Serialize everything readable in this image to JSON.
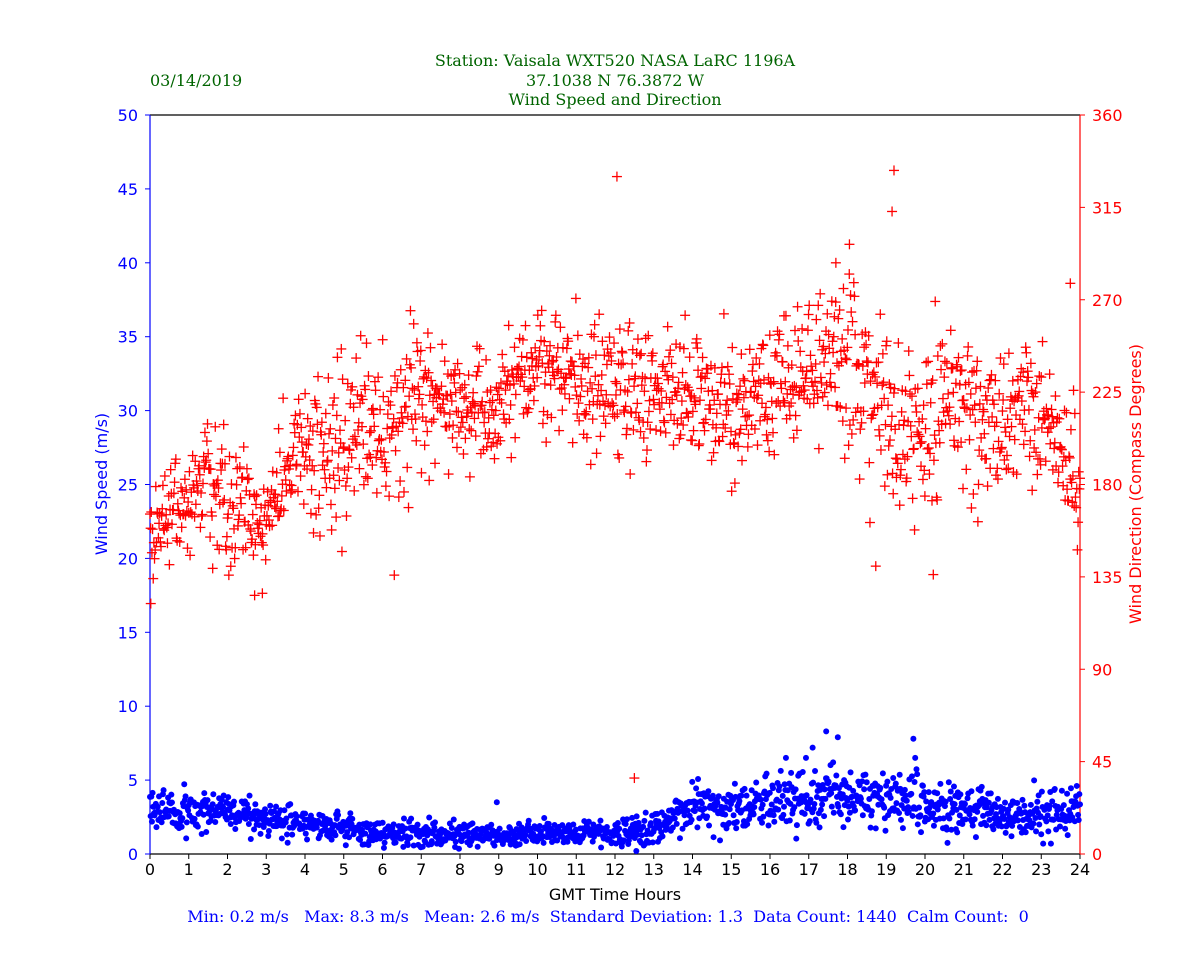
{
  "header": {
    "date": "03/14/2019",
    "station": "Station:  Vaisala WXT520  NASA LaRC 1196A",
    "coords": "37.1038 N 76.3872 W",
    "title": "Wind Speed and Direction"
  },
  "footer": {
    "stats": "Min: 0.2 m/s   Max: 8.3 m/s   Mean: 2.6 m/s  Standard Deviation: 1.3  Data Count: 1440  Calm Count:  0"
  },
  "colors": {
    "speed": "#0000ff",
    "direction": "#ff0000",
    "header": "#006400",
    "axis": "#000000"
  },
  "chart_data": {
    "type": "scatter",
    "title": "Wind Speed and Direction",
    "xlabel": "GMT Time Hours",
    "ylabel_left": "Wind Speed (m/s)",
    "ylabel_right": "Wind Direction (Compass Degrees)",
    "xlim": [
      0,
      24
    ],
    "ylim_left": [
      0,
      50
    ],
    "ylim_right": [
      0,
      360
    ],
    "x_ticks": [
      "0",
      "1",
      "2",
      "3",
      "4",
      "5",
      "6",
      "7",
      "8",
      "9",
      "10",
      "11",
      "12",
      "13",
      "14",
      "15",
      "16",
      "17",
      "18",
      "19",
      "20",
      "21",
      "22",
      "23",
      "24"
    ],
    "y_left_ticks": [
      "0",
      "5",
      "10",
      "15",
      "20",
      "25",
      "30",
      "35",
      "40",
      "45",
      "50"
    ],
    "y_right_ticks": [
      "0",
      "45",
      "90",
      "135",
      "180",
      "225",
      "270",
      "315",
      "360"
    ],
    "series": [
      {
        "name": "Wind Speed",
        "axis": "left",
        "marker": "dot",
        "count": 1440,
        "x": [
          0,
          1,
          2,
          3,
          4,
          5,
          6,
          7,
          8,
          9,
          10,
          11,
          12,
          12.5,
          13,
          13.5,
          14,
          15,
          16,
          17,
          17.5,
          18,
          19,
          19.7,
          20,
          21,
          22,
          23,
          24
        ],
        "y": [
          3.0,
          3.0,
          2.8,
          2.2,
          2.0,
          1.8,
          1.5,
          1.4,
          1.3,
          1.2,
          1.4,
          1.3,
          1.6,
          1.5,
          1.7,
          2.4,
          3.2,
          3.0,
          3.6,
          3.9,
          4.3,
          3.9,
          3.6,
          3.9,
          3.2,
          3.2,
          2.6,
          2.5,
          3.0
        ],
        "spread": [
          0.9,
          0.9,
          0.9,
          0.8,
          0.7,
          0.7,
          0.6,
          0.6,
          0.6,
          0.5,
          0.6,
          0.5,
          0.7,
          0.7,
          0.7,
          0.9,
          1.0,
          1.0,
          1.3,
          1.4,
          1.5,
          1.4,
          1.4,
          1.5,
          1.3,
          1.2,
          1.0,
          1.0,
          1.0
        ],
        "outliers": [
          [
            12.55,
            0.2
          ],
          [
            8.95,
            3.5
          ],
          [
            17.45,
            8.3
          ],
          [
            17.75,
            7.9
          ],
          [
            19.7,
            7.8
          ],
          [
            17.1,
            7.2
          ]
        ],
        "min": 0.2,
        "max": 8.3,
        "mean": 2.6,
        "std": 1.3
      },
      {
        "name": "Wind Direction",
        "axis": "right",
        "marker": "plus",
        "count": 1440,
        "x": [
          0,
          0.5,
          1,
          1.5,
          2,
          2.5,
          2.8,
          3,
          3.5,
          4,
          4.5,
          5,
          5.5,
          6,
          6.5,
          7,
          8,
          9,
          9.5,
          10,
          11,
          12,
          13,
          14,
          15,
          15.5,
          16,
          17,
          17.5,
          18,
          18.5,
          19,
          19.5,
          20,
          20.5,
          21,
          22,
          22.5,
          23,
          23.5,
          24
        ],
        "y": [
          160,
          165,
          172,
          180,
          175,
          168,
          155,
          160,
          183,
          190,
          198,
          205,
          208,
          203,
          212,
          222,
          220,
          215,
          236,
          235,
          228,
          223,
          228,
          225,
          215,
          220,
          223,
          238,
          247,
          240,
          235,
          218,
          205,
          198,
          215,
          218,
          212,
          220,
          208,
          200,
          175
        ],
        "spread": [
          14,
          15,
          16,
          18,
          20,
          18,
          10,
          12,
          18,
          20,
          20,
          20,
          20,
          20,
          22,
          18,
          18,
          16,
          14,
          16,
          16,
          20,
          16,
          16,
          18,
          18,
          18,
          18,
          20,
          24,
          24,
          30,
          26,
          26,
          24,
          22,
          18,
          20,
          18,
          16,
          14
        ],
        "outliers": [
          [
            12.05,
            330
          ],
          [
            19.2,
            333
          ],
          [
            19.15,
            313
          ],
          [
            18.05,
            297
          ],
          [
            23.75,
            278
          ],
          [
            0.02,
            122
          ],
          [
            12.5,
            37
          ],
          [
            17.7,
            288
          ],
          [
            2.7,
            126
          ],
          [
            2.9,
            127
          ]
        ]
      }
    ]
  }
}
